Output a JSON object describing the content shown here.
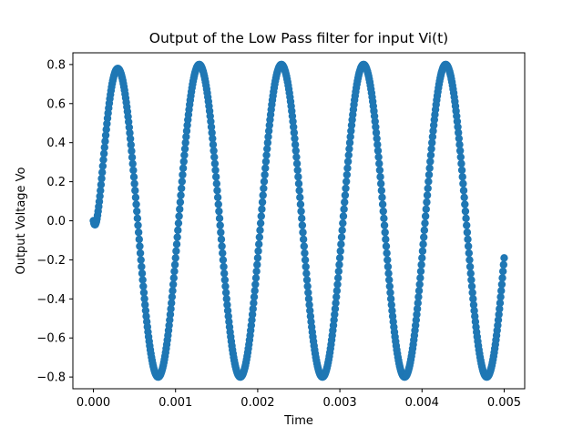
{
  "chart_data": {
    "type": "scatter",
    "title": "Output of the Low Pass filter for input Vi(t)",
    "xlabel": "Time",
    "ylabel": "Output Voltage Vo",
    "xlim": [
      -0.00025,
      0.00525
    ],
    "ylim": [
      -0.86,
      0.86
    ],
    "x_ticks": [
      0.0,
      0.001,
      0.002,
      0.003,
      0.004,
      0.005
    ],
    "x_tick_labels": [
      "0.000",
      "0.001",
      "0.002",
      "0.003",
      "0.004",
      "0.005"
    ],
    "y_ticks": [
      -0.8,
      -0.6,
      -0.4,
      -0.2,
      0.0,
      0.2,
      0.4,
      0.6,
      0.8
    ],
    "y_tick_labels": [
      "−0.8",
      "−0.6",
      "−0.4",
      "−0.2",
      "0.0",
      "0.2",
      "0.4",
      "0.6",
      "0.8"
    ],
    "grid": false,
    "series": [
      {
        "color": "#1f77b4",
        "signal": {
          "shape": "damped-start sinusoid",
          "amplitude": 0.8,
          "frequency_hz": 1000,
          "phase_rad": -0.24,
          "x_start": 0.0,
          "x_end": 0.005
        }
      }
    ]
  }
}
